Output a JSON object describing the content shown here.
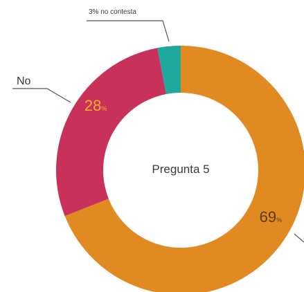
{
  "chart_data": {
    "type": "pie",
    "variant": "donut",
    "center_label": "Pregunta 5",
    "slices": [
      {
        "name": "",
        "value": 69,
        "label_number": "69",
        "label_unit": "%",
        "color": "#E28A22",
        "label_color": "#5a3a10"
      },
      {
        "name": "No",
        "value": 28,
        "label_number": "28",
        "label_unit": "%",
        "color": "#C8325A",
        "label_color": "#F2B12D"
      },
      {
        "name": "",
        "value": 3,
        "label_number": "3",
        "label_unit": "% no contesta",
        "color": "#1FA89E",
        "label_color": "#3a3a3a"
      }
    ],
    "callouts": {
      "no_label": "No",
      "no_contesta_label": "3% no contesta"
    },
    "legend": "none",
    "grid": false
  }
}
